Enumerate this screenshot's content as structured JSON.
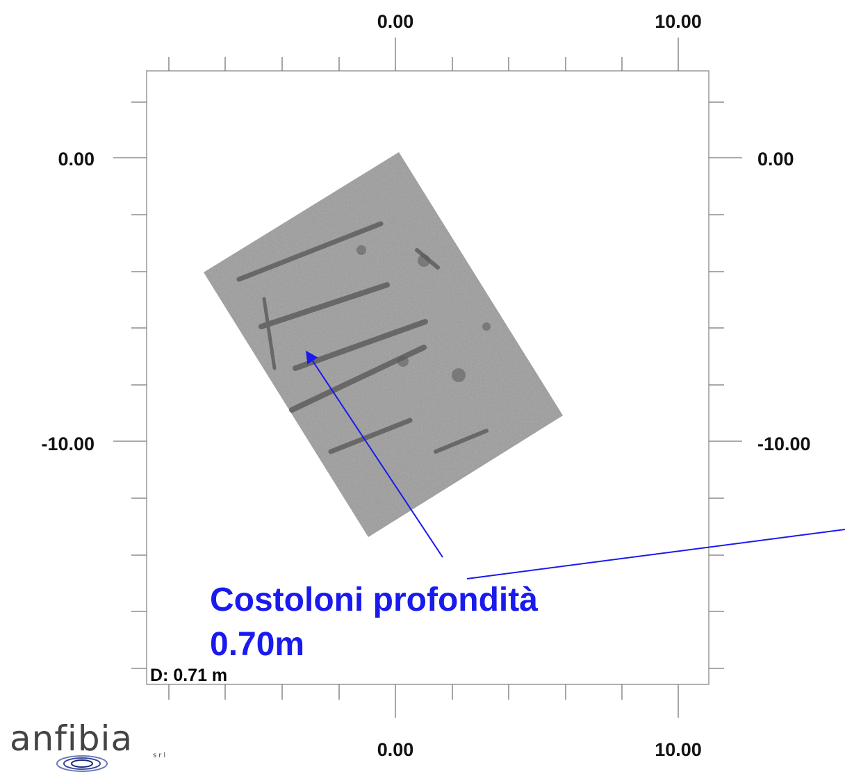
{
  "ticks": {
    "x_top": [
      "0.00",
      "10.00"
    ],
    "x_bottom": [
      "0.00",
      "10.00"
    ],
    "y_left": [
      "0.00",
      "-10.00"
    ],
    "y_right": [
      "0.00",
      "-10.00"
    ]
  },
  "depth_label": "D: 0.71 m",
  "annotation": {
    "line1": "Costoloni profondità",
    "line2": "0.70m",
    "color": "#1a1aee"
  },
  "logo": {
    "name": "anfibia",
    "suffix": "srl"
  },
  "colors": {
    "frame": "#999999",
    "scan_fill": "#9a9a9a",
    "arrow": "#1a1aee"
  }
}
